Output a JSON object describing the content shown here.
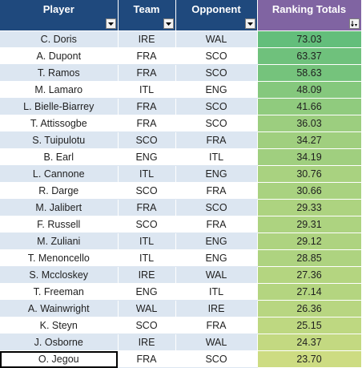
{
  "headers": {
    "player": "Player",
    "team": "Team",
    "opponent": "Opponent",
    "ranking": "Ranking Totals"
  },
  "colors": {
    "header_blue": "#1f497d",
    "header_purple": "#8064a2",
    "band_blue": "#dce6f1",
    "scale_high": "#63be7b",
    "scale_low": "#cddc82"
  },
  "icons": {
    "filter": "filter-dropdown-icon",
    "sort": "sort-descending-icon"
  },
  "rows": [
    {
      "player": "C. Doris",
      "team": "IRE",
      "opponent": "WAL",
      "total": "73.03"
    },
    {
      "player": "A. Dupont",
      "team": "FRA",
      "opponent": "SCO",
      "total": "63.37"
    },
    {
      "player": "T. Ramos",
      "team": "FRA",
      "opponent": "SCO",
      "total": "58.63"
    },
    {
      "player": "M. Lamaro",
      "team": "ITL",
      "opponent": "ENG",
      "total": "48.09"
    },
    {
      "player": "L. Bielle-Biarrey",
      "team": "FRA",
      "opponent": "SCO",
      "total": "41.66"
    },
    {
      "player": "T. Attissogbe",
      "team": "FRA",
      "opponent": "SCO",
      "total": "36.03"
    },
    {
      "player": "S. Tuipulotu",
      "team": "SCO",
      "opponent": "FRA",
      "total": "34.27"
    },
    {
      "player": "B. Earl",
      "team": "ENG",
      "opponent": "ITL",
      "total": "34.19"
    },
    {
      "player": "L. Cannone",
      "team": "ITL",
      "opponent": "ENG",
      "total": "30.76"
    },
    {
      "player": "R. Darge",
      "team": "SCO",
      "opponent": "FRA",
      "total": "30.66"
    },
    {
      "player": "M. Jalibert",
      "team": "FRA",
      "opponent": "SCO",
      "total": "29.33"
    },
    {
      "player": "F. Russell",
      "team": "SCO",
      "opponent": "FRA",
      "total": "29.31"
    },
    {
      "player": "M. Zuliani",
      "team": "ITL",
      "opponent": "ENG",
      "total": "29.12"
    },
    {
      "player": "T. Menoncello",
      "team": "ITL",
      "opponent": "ENG",
      "total": "28.85"
    },
    {
      "player": "S. Mccloskey",
      "team": "IRE",
      "opponent": "WAL",
      "total": "27.36"
    },
    {
      "player": "T. Freeman",
      "team": "ENG",
      "opponent": "ITL",
      "total": "27.14"
    },
    {
      "player": "A. Wainwright",
      "team": "WAL",
      "opponent": "IRE",
      "total": "26.36"
    },
    {
      "player": "K. Steyn",
      "team": "SCO",
      "opponent": "FRA",
      "total": "25.15"
    },
    {
      "player": "J. Osborne",
      "team": "IRE",
      "opponent": "WAL",
      "total": "24.37"
    },
    {
      "player": "O. Jegou",
      "team": "FRA",
      "opponent": "SCO",
      "total": "23.70"
    }
  ]
}
